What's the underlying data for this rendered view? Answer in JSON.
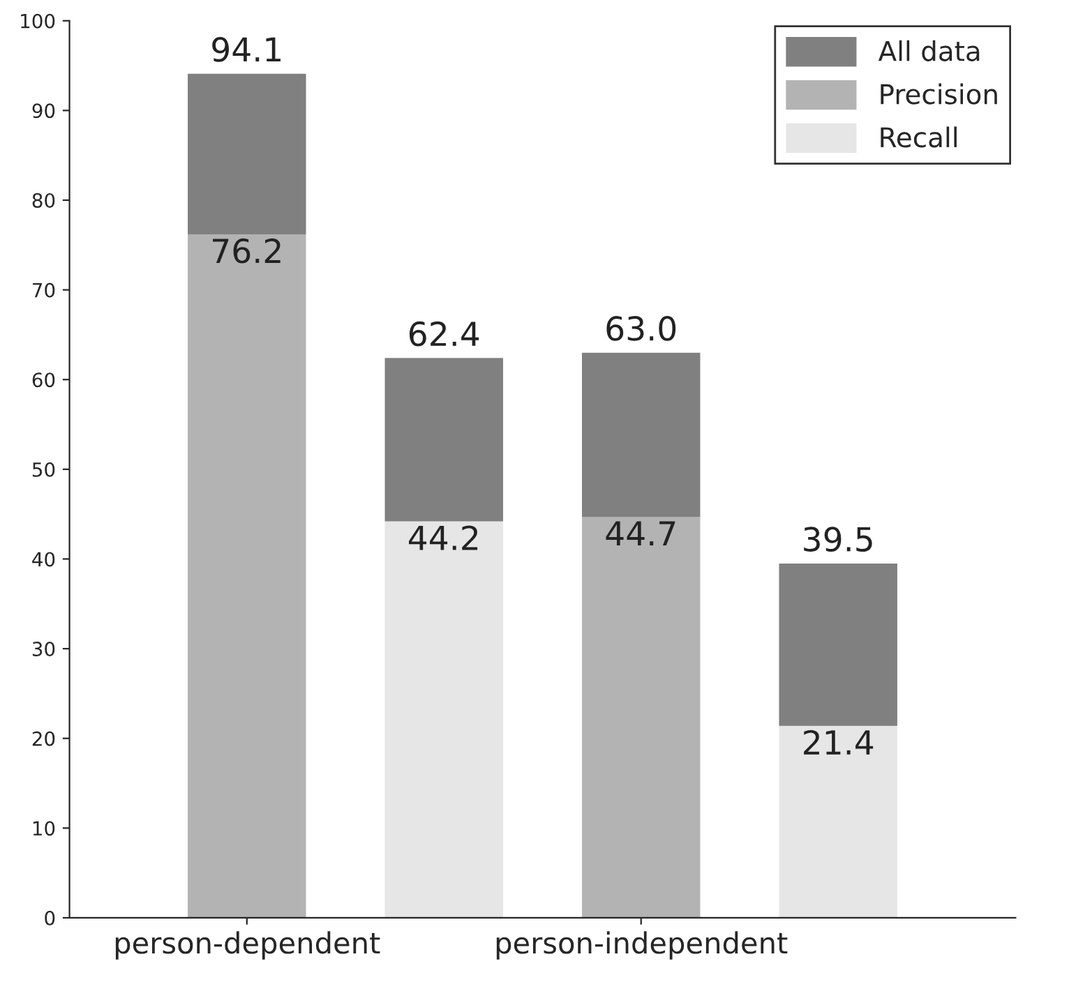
{
  "chart_data": {
    "type": "bar",
    "stacked": true,
    "categories": [
      "person-dependent",
      null,
      "person-independent",
      null
    ],
    "series": [
      {
        "name": "Precision",
        "color": "#b3b3b3",
        "values": [
          76.2,
          null,
          44.7,
          null
        ],
        "value_labels": [
          "76.2",
          null,
          "44.7",
          null
        ]
      },
      {
        "name": "Recall",
        "color": "#e6e6e6",
        "values": [
          null,
          44.2,
          null,
          21.4
        ],
        "value_labels": [
          null,
          "44.2",
          null,
          "21.4"
        ]
      },
      {
        "name": "All data",
        "color": "#808080",
        "values": [
          17.9,
          18.2,
          18.3,
          18.1
        ]
      }
    ],
    "totals": [
      "94.1",
      "62.4",
      "63.0",
      "39.5"
    ],
    "ylim": [
      0,
      100
    ],
    "yticks": [
      0,
      10,
      20,
      30,
      40,
      50,
      60,
      70,
      80,
      90,
      100
    ],
    "grid": false,
    "legend": "top right"
  }
}
